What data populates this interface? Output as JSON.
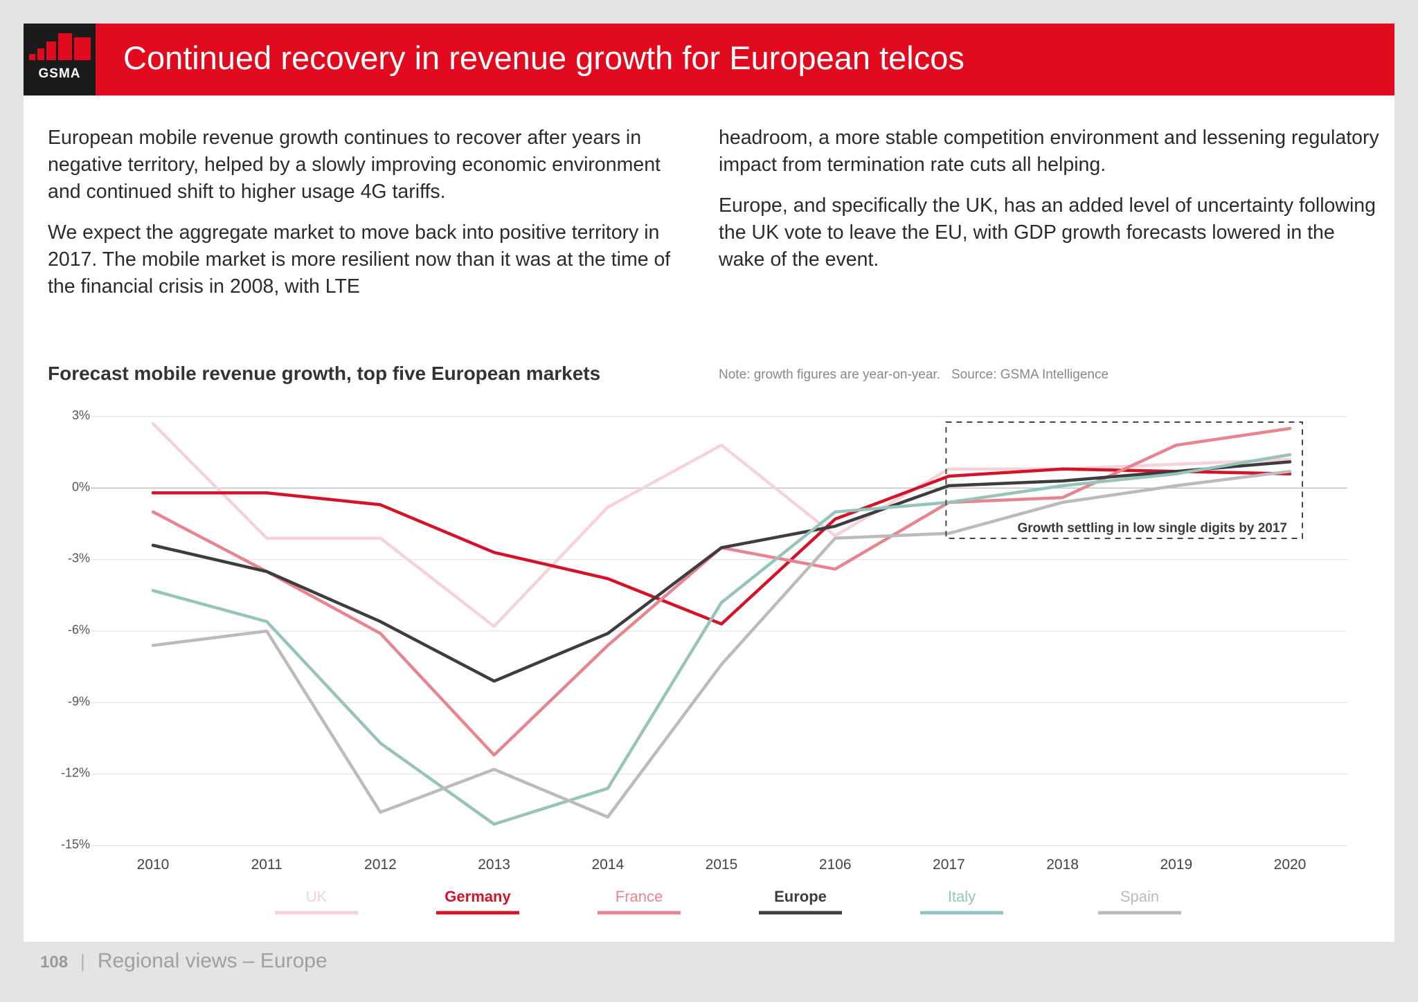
{
  "header": {
    "logo_text": "GSMA",
    "title": "Continued recovery in revenue growth for European telcos"
  },
  "body_text": {
    "left": [
      "European mobile revenue growth continues to recover after years in negative territory, helped by a slowly improving economic environment and continued shift to higher usage 4G tariffs.",
      "We expect the aggregate market to move back into positive territory in 2017. The mobile market is more resilient now than it was at the time of the financial crisis in 2008, with LTE"
    ],
    "right": [
      "headroom, a more stable competition environment and lessening regulatory impact from termination rate cuts all helping.",
      "Europe, and specifically the UK, has an added level of uncertainty following the UK vote to leave the EU, with GDP growth forecasts lowered in the wake of the event."
    ]
  },
  "chart": {
    "title": "Forecast mobile revenue growth, top five European markets",
    "note": "Note: growth figures are year-on-year.",
    "source": "Source: GSMA Intelligence"
  },
  "chart_data": {
    "type": "line",
    "x": [
      "2010",
      "2011",
      "2012",
      "2013",
      "2014",
      "2015",
      "2106",
      "2017",
      "2018",
      "2019",
      "2020"
    ],
    "yticks": [
      "3%",
      "0%",
      "-3%",
      "-6%",
      "-9%",
      "-12%",
      "-15%"
    ],
    "ylim": [
      -15,
      3
    ],
    "grid": true,
    "legend_position": "bottom",
    "annotation": {
      "text": "Growth settling in low single digits by 2017",
      "x_range": [
        "2017",
        "2020"
      ],
      "style": "dashed-box"
    },
    "series": [
      {
        "name": "UK",
        "color": "#f6d3d9",
        "values": [
          2.7,
          -2.1,
          -2.1,
          -5.8,
          -0.8,
          1.8,
          -2.0,
          0.8,
          0.8,
          1.0,
          1.2
        ]
      },
      {
        "name": "Germany",
        "color": "#d31327",
        "values": [
          -0.2,
          -0.2,
          -0.7,
          -2.7,
          -3.8,
          -5.7,
          -1.3,
          0.5,
          0.8,
          0.7,
          0.6
        ]
      },
      {
        "name": "France",
        "color": "#e8848e",
        "values": [
          -1.0,
          -3.5,
          -6.1,
          -11.2,
          -6.6,
          -2.5,
          -3.4,
          -0.6,
          -0.4,
          1.8,
          2.5
        ]
      },
      {
        "name": "Europe",
        "color": "#3d3d3f",
        "values": [
          -2.4,
          -3.5,
          -5.6,
          -8.1,
          -6.1,
          -2.5,
          -1.6,
          0.1,
          0.3,
          0.7,
          1.1
        ]
      },
      {
        "name": "Italy",
        "color": "#96c3bb",
        "values": [
          -4.3,
          -5.6,
          -10.7,
          -14.1,
          -12.6,
          -4.8,
          -1.0,
          -0.6,
          0.1,
          0.6,
          1.4
        ]
      },
      {
        "name": "Spain",
        "color": "#bbbbbd",
        "values": [
          -6.6,
          -6.0,
          -13.6,
          -11.8,
          -13.8,
          -7.4,
          -2.1,
          -1.9,
          -0.6,
          0.1,
          0.7
        ]
      }
    ]
  },
  "footer": {
    "page_number": "108",
    "separator": "|",
    "section": "Regional views – Europe"
  }
}
